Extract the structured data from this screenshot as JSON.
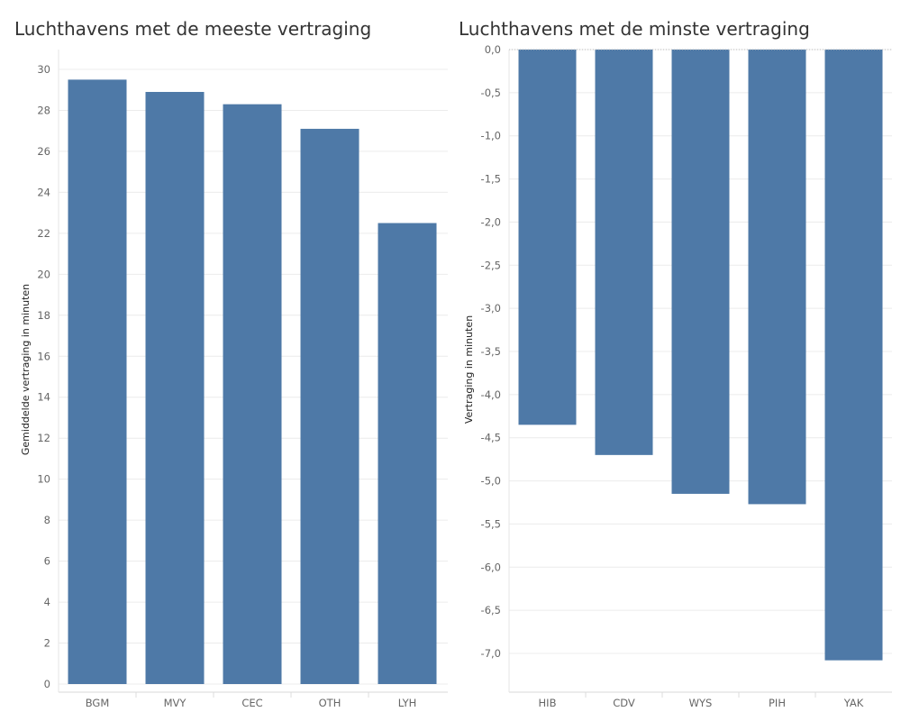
{
  "chart_data": [
    {
      "type": "bar",
      "title": "Luchthavens met de meeste vertraging",
      "ylabel": "Gemiddelde vertraging in minuten",
      "xlabel": "",
      "categories": [
        "BGM",
        "MVY",
        "CEC",
        "OTH",
        "LYH"
      ],
      "values": [
        29.5,
        28.9,
        28.3,
        27.1,
        22.5
      ],
      "ylim": [
        0,
        30
      ],
      "yticks": [
        0,
        2,
        4,
        6,
        8,
        10,
        12,
        14,
        16,
        18,
        20,
        22,
        24,
        26,
        28,
        30
      ],
      "tick_labels": [
        "0",
        "2",
        "4",
        "6",
        "8",
        "10",
        "12",
        "14",
        "16",
        "18",
        "20",
        "22",
        "24",
        "26",
        "28",
        "30"
      ],
      "bar_color": "#4e79a7",
      "grid": true
    },
    {
      "type": "bar",
      "title": "Luchthavens met de minste vertraging",
      "ylabel": "Vertraging in minuten",
      "xlabel": "",
      "categories": [
        "HIB",
        "CDV",
        "WYS",
        "PIH",
        "YAK"
      ],
      "values": [
        -4.35,
        -4.7,
        -5.15,
        -5.27,
        -7.08
      ],
      "ylim": [
        -7.0,
        0.0
      ],
      "yticks": [
        0.0,
        -0.5,
        -1.0,
        -1.5,
        -2.0,
        -2.5,
        -3.0,
        -3.5,
        -4.0,
        -4.5,
        -5.0,
        -5.5,
        -6.0,
        -6.5,
        -7.0
      ],
      "tick_labels": [
        "0,0",
        "-0,5",
        "-1,0",
        "-1,5",
        "-2,0",
        "-2,5",
        "-3,0",
        "-3,5",
        "-4,0",
        "-4,5",
        "-5,0",
        "-5,5",
        "-6,0",
        "-6,5",
        "-7,0"
      ],
      "bar_color": "#4e79a7",
      "grid": true
    }
  ]
}
